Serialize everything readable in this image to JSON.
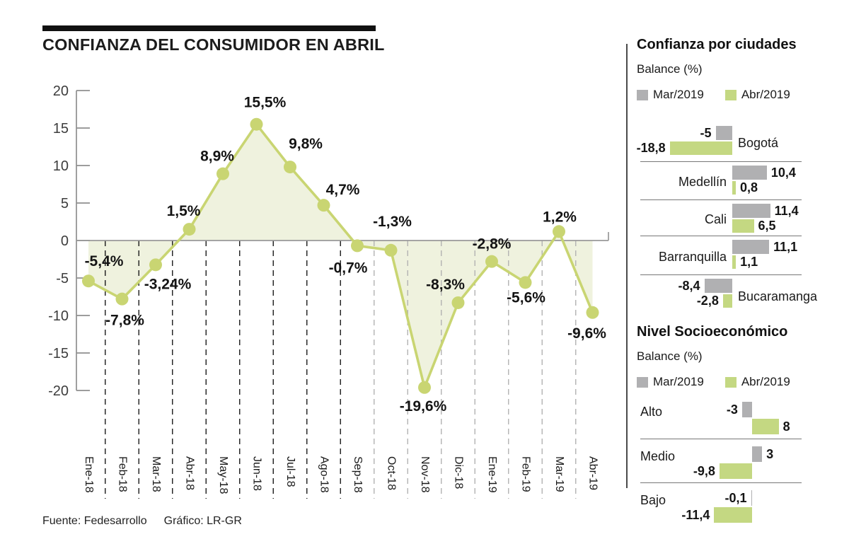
{
  "header": {
    "title": "CONFIANZA DEL CONSUMIDOR EN ABRIL"
  },
  "footer": {
    "source": "Fuente: Fedesarrollo",
    "credit": "Gráfico: LR-GR"
  },
  "colors": {
    "line": "#c9d572",
    "area_fill": "#eff2de",
    "green_bar": "#c4d882",
    "gray_bar": "#b0b0b2",
    "axis": "#8f8f8f",
    "zero_line": "#999999",
    "dash_dark": "#1a1a1a",
    "dash_light": "#b2b2b2",
    "text": "#1a1a1a"
  },
  "chart_data": [
    {
      "type": "line",
      "title": "CONFIANZA DEL CONSUMIDOR EN ABRIL",
      "x": [
        "Ene-18",
        "Feb-18",
        "Mar-18",
        "Abr-18",
        "May-18",
        "Jun-18",
        "Jul-18",
        "Ago-18",
        "Sep-18",
        "Oct-18",
        "Nov-18",
        "Dic-18",
        "Ene-19",
        "Feb-19",
        "Mar-19",
        "Abr-19"
      ],
      "values": [
        -5.4,
        -7.8,
        -3.24,
        1.5,
        8.9,
        15.5,
        9.8,
        4.7,
        -0.7,
        -1.3,
        -19.6,
        -8.3,
        -2.8,
        -5.6,
        1.2,
        -9.6
      ],
      "labels": [
        "-5,4%",
        "-7,8%",
        "-3,24%",
        "1,5%",
        "8,9%",
        "15,5%",
        "9,8%",
        "4,7%",
        "-0,7%",
        "-1,3%",
        "-19,6%",
        "-8,3%",
        "-2,8%",
        "-5,6%",
        "1,2%",
        "-9,6%"
      ],
      "ylim": [
        -20,
        20
      ],
      "yticks": [
        20,
        15,
        10,
        5,
        0,
        -5,
        -10,
        -15,
        -20
      ],
      "grid": "vertical-dashed-below-zero",
      "legend_position": "none"
    },
    {
      "type": "bar",
      "title": "Confianza por ciudades",
      "subtitle": "Balance (%)",
      "legend": [
        "Mar/2019",
        "Abr/2019"
      ],
      "categories": [
        "Bogotá",
        "Medellín",
        "Cali",
        "Barranquilla",
        "Bucaramanga"
      ],
      "series": [
        {
          "name": "Mar/2019",
          "values": [
            -5,
            10.4,
            11.4,
            11.1,
            -8.4
          ],
          "labels": [
            "-5",
            "10,4",
            "11,4",
            "11,1",
            "-8,4"
          ]
        },
        {
          "name": "Abr/2019",
          "values": [
            -18.8,
            0.8,
            6.5,
            1.1,
            -2.8
          ],
          "labels": [
            "-18,8",
            "0,8",
            "6,5",
            "1,1",
            "-2,8"
          ]
        }
      ]
    },
    {
      "type": "bar",
      "title": "Nivel Socioeconómico",
      "subtitle": "Balance (%)",
      "legend": [
        "Mar/2019",
        "Abr/2019"
      ],
      "categories": [
        "Alto",
        "Medio",
        "Bajo"
      ],
      "series": [
        {
          "name": "Mar/2019",
          "values": [
            -3,
            3,
            -0.1
          ],
          "labels": [
            "-3",
            "3",
            "-0,1"
          ]
        },
        {
          "name": "Abr/2019",
          "values": [
            8,
            -9.8,
            -11.4
          ],
          "labels": [
            "8",
            "-9,8",
            "-11,4"
          ]
        }
      ]
    }
  ]
}
